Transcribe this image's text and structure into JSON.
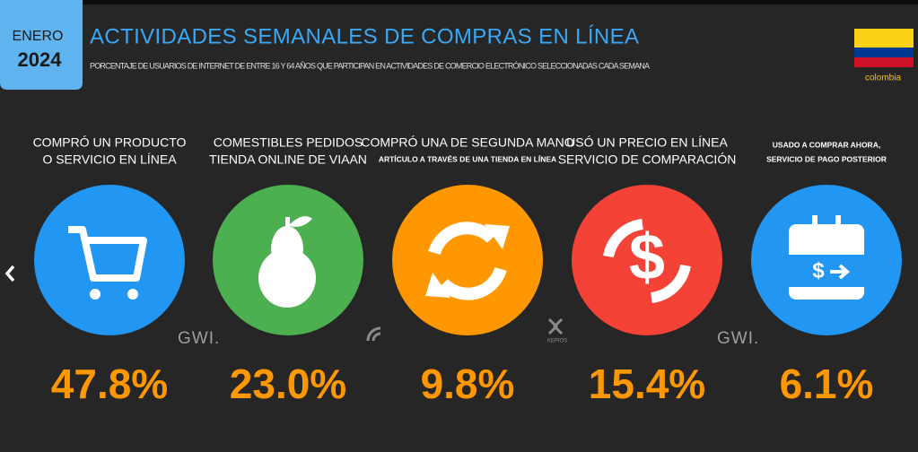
{
  "badge": {
    "month": "ENERO",
    "year": "2024"
  },
  "title": "ACTIVIDADES SEMANALES DE COMPRAS EN LÍNEA",
  "subtitle": "PORCENTAJE DE USUARIOS DE INTERNET DE ENTRE 16 Y 64 AÑOS QUE PARTICIPAN EN ACTIVIDADES DE COMERCIO ELECTRÓNICO SELECCIONADAS CADA SEMANA",
  "flag_label": "colombia",
  "items": [
    {
      "label": "COMPRÓ UN PRODUCTO",
      "label2": "O SERVICIO EN LÍNEA",
      "value": "47.8%"
    },
    {
      "label": "COMESTIBLES PEDIDOS",
      "label2": "TIENDA ONLINE DE VIAAN",
      "value": "23.0%"
    },
    {
      "label": "COMPRÓ UNA DE SEGUNDA MANO",
      "sublabel": "ARTÍCULO A TRAVÉS DE UNA TIENDA EN LÍNEA",
      "value": "9.8%"
    },
    {
      "label": "USÓ UN PRECIO EN LÍNEA",
      "label2": "SERVICIO DE COMPARACIÓN",
      "value": "15.4%"
    },
    {
      "sublabel": "USADO A COMPRAR AHORA,",
      "sublabel2": "SERVICIO DE PAGO POSTERIOR",
      "value": "6.1%"
    }
  ],
  "watermarks": [
    "GWI.",
    "KEPIOS",
    "GWI."
  ]
}
